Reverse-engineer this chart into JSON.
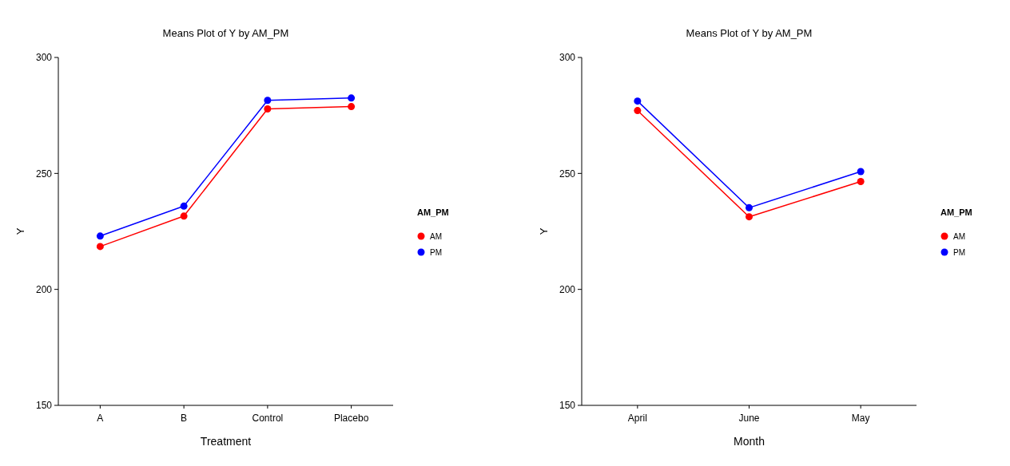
{
  "chart_data": [
    {
      "type": "line",
      "title": "Means Plot of Y by AM_PM",
      "xlabel": "Treatment",
      "ylabel": "Y",
      "legend_title": "AM_PM",
      "categories": [
        "A",
        "B",
        "Control",
        "Placebo"
      ],
      "series": [
        {
          "name": "AM",
          "color": "#ff0000",
          "values": [
            218.5,
            231.6,
            277.8,
            278.8
          ]
        },
        {
          "name": "PM",
          "color": "#0000ff",
          "values": [
            223.0,
            235.9,
            281.5,
            282.5
          ]
        }
      ],
      "ylim": [
        150,
        300
      ],
      "yticks": [
        150,
        200,
        250,
        300
      ],
      "legend": "right",
      "marker": "circle",
      "grid": false
    },
    {
      "type": "line",
      "title": "Means Plot of Y by AM_PM",
      "xlabel": "Month",
      "ylabel": "Y",
      "legend_title": "AM_PM",
      "categories": [
        "April",
        "June",
        "May"
      ],
      "series": [
        {
          "name": "AM",
          "color": "#ff0000",
          "values": [
            277.1,
            231.3,
            246.5
          ]
        },
        {
          "name": "PM",
          "color": "#0000ff",
          "values": [
            281.2,
            235.2,
            250.8
          ]
        }
      ],
      "ylim": [
        150,
        300
      ],
      "yticks": [
        150,
        200,
        250,
        300
      ],
      "legend": "right",
      "marker": "circle",
      "grid": false
    }
  ]
}
